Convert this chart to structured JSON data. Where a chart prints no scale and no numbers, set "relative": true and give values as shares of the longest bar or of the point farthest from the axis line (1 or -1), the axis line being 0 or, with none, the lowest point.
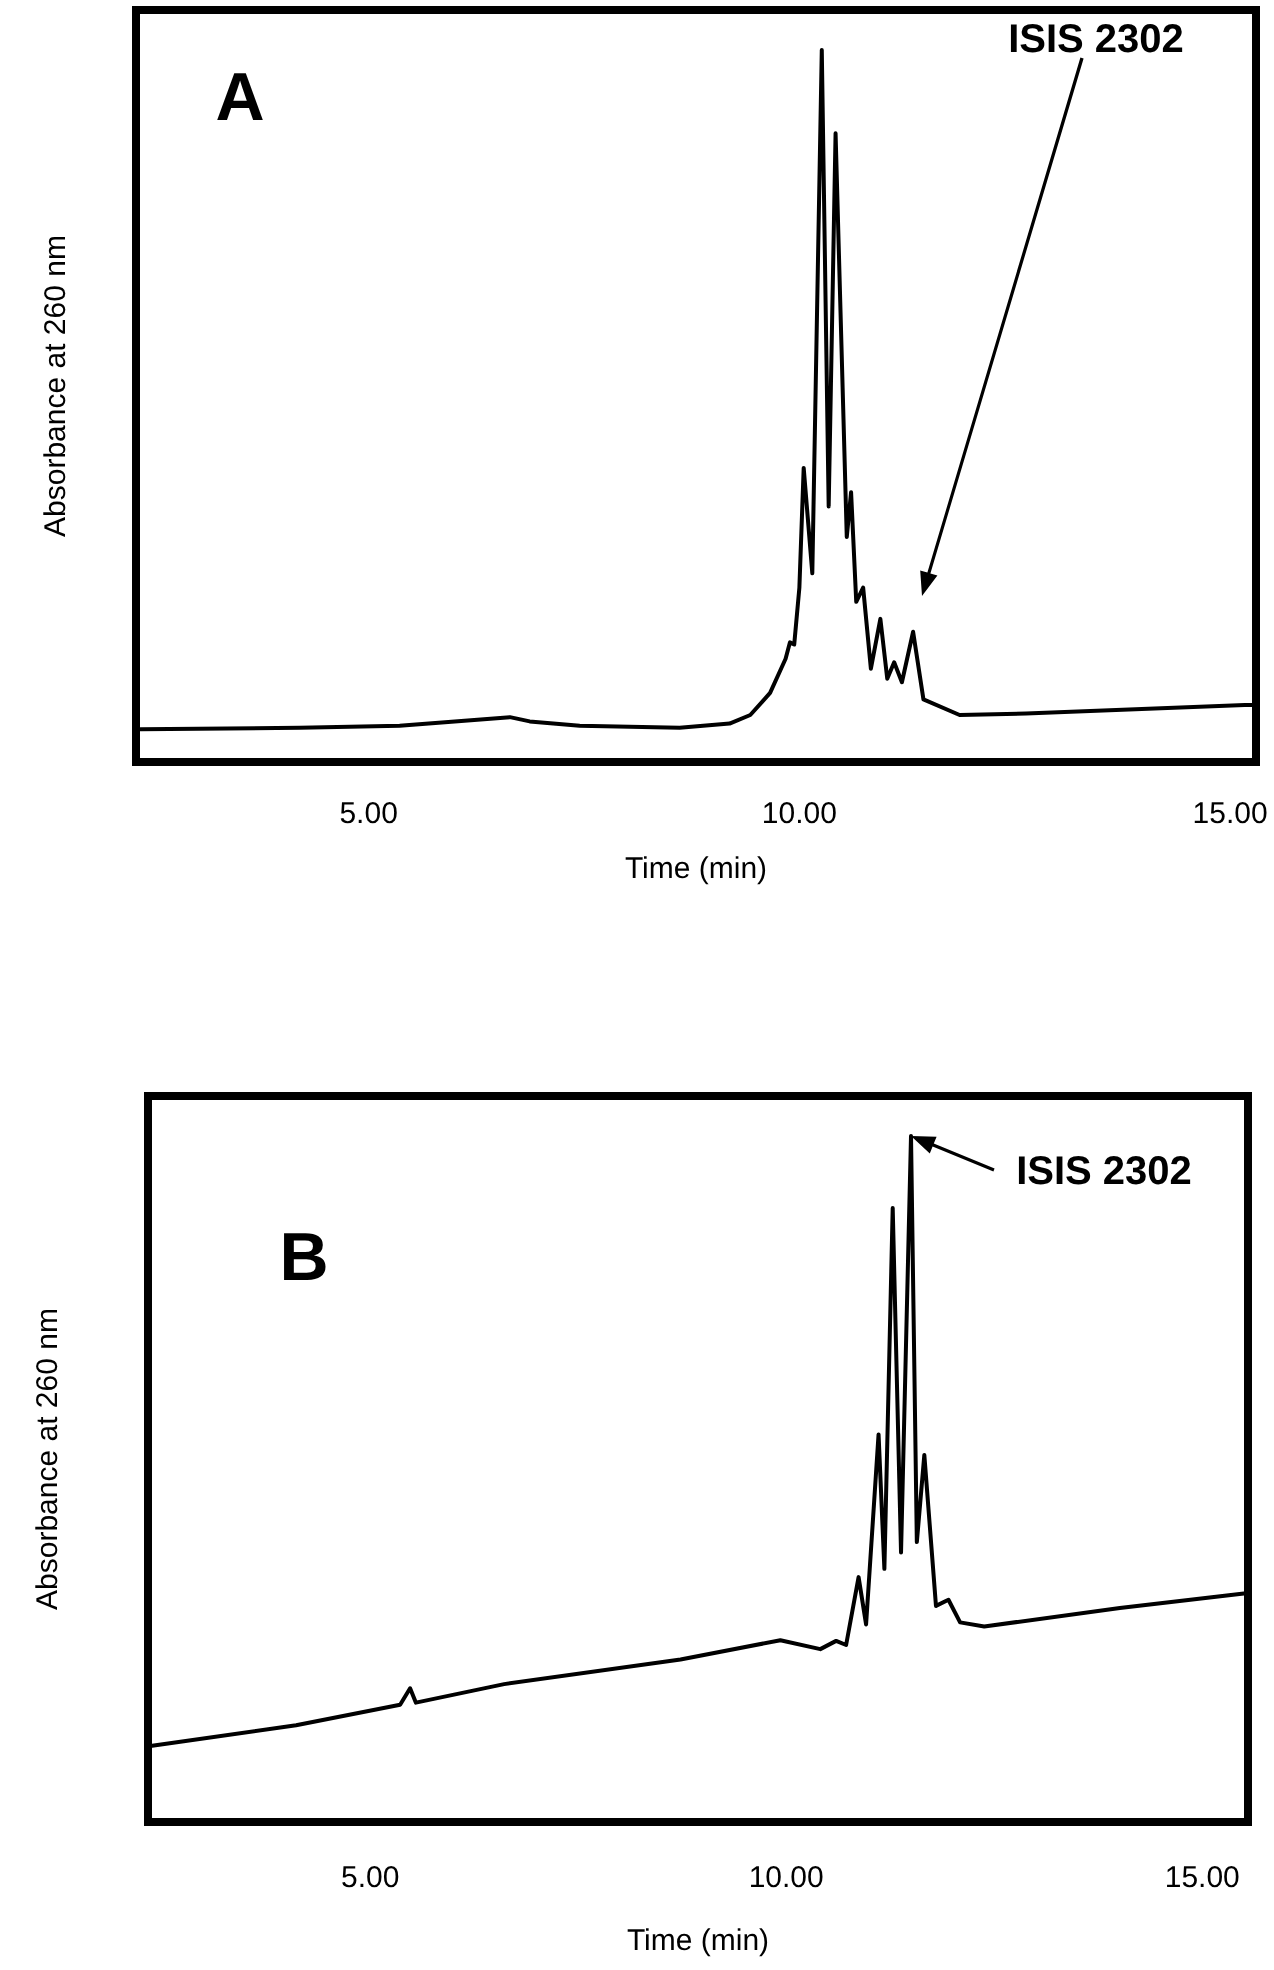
{
  "chart_data": [
    {
      "type": "line",
      "relative": true,
      "xlabel": "Time (min)",
      "ylabel": "Absorbance at 260 nm",
      "xlim": [
        2.3,
        15.3
      ],
      "xticks": [
        {
          "value": 5,
          "label": "5.00"
        },
        {
          "value": 10,
          "label": "10.00"
        },
        {
          "value": 15,
          "label": "15.00"
        }
      ],
      "tick_labels": "x",
      "grid": false,
      "line_style": "solid",
      "annotations": [
        "A",
        "ISIS 2302"
      ],
      "series": [
        {
          "color": "#000000",
          "x": [
            2.35,
            4.2,
            5.36,
            6.64,
            6.87,
            7.45,
            8.61,
            9.19,
            9.43,
            9.66,
            9.84,
            9.89,
            9.94,
            10.0,
            10.05,
            10.15,
            10.26,
            10.34,
            10.42,
            10.55,
            10.6,
            10.66,
            10.74,
            10.83,
            10.94,
            11.02,
            11.1,
            11.19,
            11.32,
            11.44,
            11.86,
            12.63,
            15.17,
            15.3
          ],
          "values": [
            0.046,
            0.048,
            0.051,
            0.063,
            0.057,
            0.051,
            0.048,
            0.054,
            0.066,
            0.097,
            0.145,
            0.168,
            0.165,
            0.245,
            0.413,
            0.265,
            1.0,
            0.359,
            0.883,
            0.316,
            0.379,
            0.225,
            0.245,
            0.131,
            0.201,
            0.117,
            0.14,
            0.112,
            0.183,
            0.088,
            0.066,
            0.068,
            0.08,
            0.08
          ]
        }
      ]
    },
    {
      "type": "line",
      "relative": true,
      "xlabel": "Time (min)",
      "ylabel": "Absorbance at 260 nm",
      "xlim": [
        2.33,
        15.55
      ],
      "xticks": [
        {
          "value": 5,
          "label": "5.00"
        },
        {
          "value": 10,
          "label": "10.00"
        },
        {
          "value": 15,
          "label": "15.00"
        }
      ],
      "tick_labels": "x",
      "grid": false,
      "line_style": "solid",
      "annotations": [
        "B",
        {
          "text": "ISIS 2302",
          "x": 11.5,
          "y": 1.0
        }
      ],
      "series": [
        {
          "color": "#000000",
          "x": [
            2.38,
            4.11,
            5.36,
            5.48,
            5.55,
            6.61,
            8.73,
            9.93,
            10.41,
            10.6,
            10.72,
            10.87,
            10.96,
            11.11,
            11.18,
            11.28,
            11.38,
            11.5,
            11.57,
            11.66,
            11.8,
            11.95,
            12.09,
            12.38,
            14.01,
            15.5
          ],
          "values": [
            0.111,
            0.141,
            0.171,
            0.195,
            0.174,
            0.201,
            0.237,
            0.265,
            0.252,
            0.264,
            0.258,
            0.357,
            0.288,
            0.565,
            0.369,
            0.895,
            0.393,
            1.0,
            0.408,
            0.535,
            0.315,
            0.324,
            0.291,
            0.285,
            0.312,
            0.333
          ]
        }
      ]
    }
  ]
}
